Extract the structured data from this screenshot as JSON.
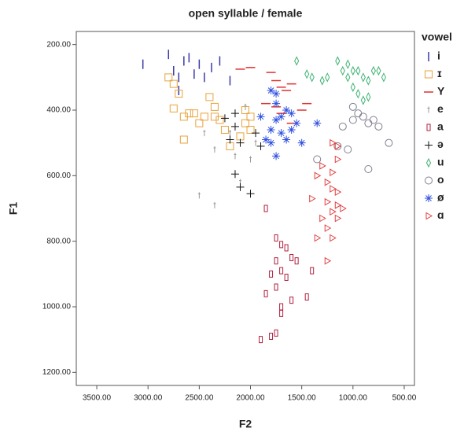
{
  "chart_data": {
    "type": "scatter",
    "title": "open syllable / female",
    "x_label": "F2",
    "y_label": "F1",
    "legend_title": "vowel",
    "xlim": [
      3700,
      400
    ],
    "ylim": [
      1240,
      160
    ],
    "xticks": [
      {
        "value": 3500,
        "label": "3500.00"
      },
      {
        "value": 3000,
        "label": "3000.00"
      },
      {
        "value": 2500,
        "label": "2500.00"
      },
      {
        "value": 2000,
        "label": "2000.00"
      },
      {
        "value": 1500,
        "label": "1500.00"
      },
      {
        "value": 1000,
        "label": "1000.00"
      },
      {
        "value": 500,
        "label": "500.00"
      }
    ],
    "yticks": [
      {
        "value": 200,
        "label": "200.00"
      },
      {
        "value": 400,
        "label": "400.00"
      },
      {
        "value": 600,
        "label": "600.00"
      },
      {
        "value": 800,
        "label": "800.00"
      },
      {
        "value": 1000,
        "label": "1000.00"
      },
      {
        "value": 1200,
        "label": "1200.00"
      }
    ],
    "legend": "right",
    "series": [
      {
        "name": "i",
        "color": "#3a3aa8",
        "marker": "vline",
        "x": [
          3050,
          2800,
          2750,
          2700,
          2650,
          2600,
          2550,
          2500,
          2450,
          2380,
          2300,
          2200,
          2700
        ],
        "values": [
          260,
          230,
          280,
          300,
          250,
          240,
          290,
          260,
          300,
          270,
          250,
          310,
          340
        ]
      },
      {
        "name": "ɪ",
        "color": "#e8a33c",
        "marker": "square",
        "x": [
          2800,
          2750,
          2700,
          2750,
          2650,
          2600,
          2550,
          2500,
          2450,
          2400,
          2350,
          2350,
          2300,
          2250,
          2200,
          2650,
          2050,
          2000,
          2050,
          2000,
          2100
        ],
        "values": [
          300,
          320,
          350,
          395,
          420,
          410,
          410,
          440,
          420,
          360,
          390,
          420,
          430,
          460,
          510,
          490,
          400,
          420,
          440,
          460,
          480
        ]
      },
      {
        "name": "Y",
        "color": "#e03030",
        "marker": "hline",
        "x": [
          2100,
          2000,
          1800,
          1750,
          1700,
          1650,
          1600,
          1850,
          1750,
          1500,
          1450,
          1700,
          1600
        ],
        "values": [
          275,
          270,
          285,
          310,
          330,
          340,
          320,
          380,
          390,
          400,
          380,
          410,
          440
        ]
      },
      {
        "name": "e",
        "color": "#999999",
        "marker": "tick",
        "x": [
          2450,
          2350,
          2200,
          2150,
          2050,
          2000,
          2500,
          2350,
          1950,
          2100
        ],
        "values": [
          470,
          520,
          470,
          540,
          390,
          550,
          660,
          690,
          500,
          620
        ]
      },
      {
        "name": "a",
        "color": "#b02040",
        "marker": "rect",
        "x": [
          1850,
          1750,
          1700,
          1650,
          1750,
          1600,
          1550,
          1700,
          1800,
          1650,
          1750,
          1600,
          1700,
          1850,
          1450,
          1400,
          1750,
          1800,
          1900,
          1700
        ],
        "values": [
          700,
          790,
          810,
          820,
          860,
          850,
          860,
          890,
          900,
          910,
          940,
          980,
          1000,
          960,
          970,
          890,
          1080,
          1090,
          1100,
          1020
        ]
      },
      {
        "name": "ə",
        "color": "#111111",
        "marker": "plus",
        "x": [
          2250,
          2150,
          2150,
          2100,
          1950,
          1900,
          2200,
          2150,
          2100,
          2000
        ],
        "values": [
          425,
          410,
          450,
          500,
          470,
          510,
          490,
          595,
          635,
          655
        ]
      },
      {
        "name": "u",
        "color": "#3cb371",
        "marker": "diamond",
        "x": [
          1550,
          1450,
          1400,
          1300,
          1250,
          1150,
          1050,
          950,
          900,
          850,
          800,
          750,
          700,
          1000,
          950,
          900,
          850,
          1050,
          1100,
          1000
        ],
        "values": [
          250,
          290,
          300,
          310,
          300,
          250,
          260,
          280,
          300,
          310,
          280,
          280,
          300,
          330,
          350,
          370,
          360,
          300,
          280,
          280
        ]
      },
      {
        "name": "o",
        "color": "#808090",
        "marker": "circle",
        "x": [
          1350,
          1150,
          1100,
          1050,
          1000,
          950,
          900,
          850,
          800,
          750,
          650,
          850,
          1000
        ],
        "values": [
          550,
          510,
          450,
          520,
          430,
          410,
          420,
          440,
          430,
          450,
          500,
          580,
          390
        ]
      },
      {
        "name": "ø",
        "color": "#3050e0",
        "marker": "star",
        "x": [
          1800,
          1750,
          1700,
          1650,
          1750,
          1600,
          1550,
          1800,
          1700,
          1650,
          1800,
          1500,
          1750,
          1350,
          1600,
          1900,
          1850,
          1750
        ],
        "values": [
          340,
          380,
          420,
          400,
          430,
          410,
          440,
          460,
          470,
          490,
          500,
          500,
          540,
          440,
          460,
          420,
          490,
          350
        ]
      },
      {
        "name": "ɑ",
        "color": "#e04040",
        "marker": "triangle",
        "x": [
          1200,
          1150,
          1150,
          1200,
          1250,
          1200,
          1150,
          1250,
          1150,
          1200,
          1150,
          1300,
          1400,
          1300,
          1350,
          1350,
          1250,
          1200,
          1100,
          1250
        ],
        "values": [
          500,
          510,
          550,
          590,
          620,
          640,
          650,
          680,
          690,
          710,
          730,
          730,
          670,
          570,
          600,
          790,
          860,
          790,
          700,
          760
        ]
      }
    ]
  }
}
